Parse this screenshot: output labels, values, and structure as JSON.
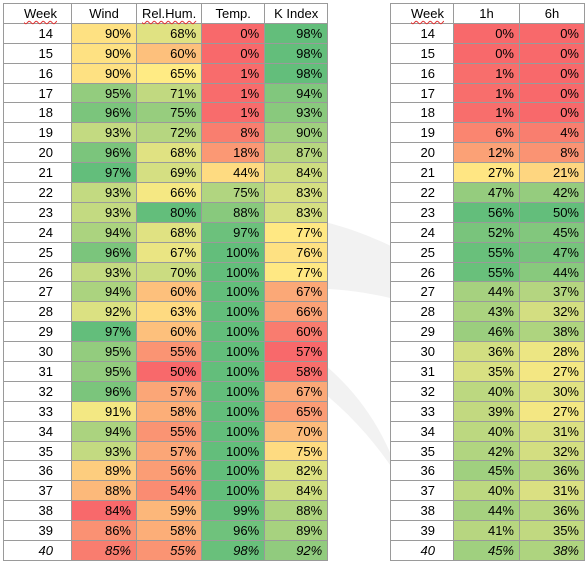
{
  "left_table": {
    "headers": [
      "Week",
      "Wind",
      "Rel.Hum.",
      "Temp.",
      "K Index"
    ],
    "rows": [
      [
        "14",
        "90%",
        "68%",
        "0%",
        "98%"
      ],
      [
        "15",
        "90%",
        "60%",
        "0%",
        "98%"
      ],
      [
        "16",
        "90%",
        "65%",
        "1%",
        "98%"
      ],
      [
        "17",
        "95%",
        "71%",
        "1%",
        "94%"
      ],
      [
        "18",
        "96%",
        "75%",
        "1%",
        "93%"
      ],
      [
        "19",
        "93%",
        "72%",
        "8%",
        "90%"
      ],
      [
        "20",
        "96%",
        "68%",
        "18%",
        "87%"
      ],
      [
        "21",
        "97%",
        "69%",
        "44%",
        "84%"
      ],
      [
        "22",
        "93%",
        "66%",
        "75%",
        "83%"
      ],
      [
        "23",
        "93%",
        "80%",
        "88%",
        "83%"
      ],
      [
        "24",
        "94%",
        "68%",
        "97%",
        "77%"
      ],
      [
        "25",
        "96%",
        "67%",
        "100%",
        "76%"
      ],
      [
        "26",
        "93%",
        "70%",
        "100%",
        "77%"
      ],
      [
        "27",
        "94%",
        "60%",
        "100%",
        "67%"
      ],
      [
        "28",
        "92%",
        "63%",
        "100%",
        "66%"
      ],
      [
        "29",
        "97%",
        "60%",
        "100%",
        "60%"
      ],
      [
        "30",
        "95%",
        "55%",
        "100%",
        "57%"
      ],
      [
        "31",
        "95%",
        "50%",
        "100%",
        "58%"
      ],
      [
        "32",
        "96%",
        "57%",
        "100%",
        "67%"
      ],
      [
        "33",
        "91%",
        "58%",
        "100%",
        "65%"
      ],
      [
        "34",
        "94%",
        "55%",
        "100%",
        "70%"
      ],
      [
        "35",
        "93%",
        "57%",
        "100%",
        "75%"
      ],
      [
        "36",
        "89%",
        "56%",
        "100%",
        "82%"
      ],
      [
        "37",
        "88%",
        "54%",
        "100%",
        "84%"
      ],
      [
        "38",
        "84%",
        "59%",
        "99%",
        "88%"
      ],
      [
        "39",
        "86%",
        "58%",
        "96%",
        "89%"
      ],
      [
        "40",
        "85%",
        "55%",
        "98%",
        "92%"
      ]
    ]
  },
  "right_table": {
    "headers": [
      "Week",
      "1h",
      "6h"
    ],
    "rows": [
      [
        "14",
        "0%",
        "0%"
      ],
      [
        "15",
        "0%",
        "0%"
      ],
      [
        "16",
        "1%",
        "0%"
      ],
      [
        "17",
        "1%",
        "0%"
      ],
      [
        "18",
        "1%",
        "0%"
      ],
      [
        "19",
        "6%",
        "4%"
      ],
      [
        "20",
        "12%",
        "8%"
      ],
      [
        "21",
        "27%",
        "21%"
      ],
      [
        "22",
        "47%",
        "42%"
      ],
      [
        "23",
        "56%",
        "50%"
      ],
      [
        "24",
        "52%",
        "45%"
      ],
      [
        "25",
        "55%",
        "47%"
      ],
      [
        "26",
        "55%",
        "44%"
      ],
      [
        "27",
        "44%",
        "37%"
      ],
      [
        "28",
        "43%",
        "32%"
      ],
      [
        "29",
        "46%",
        "38%"
      ],
      [
        "30",
        "36%",
        "28%"
      ],
      [
        "31",
        "35%",
        "27%"
      ],
      [
        "32",
        "40%",
        "30%"
      ],
      [
        "33",
        "39%",
        "27%"
      ],
      [
        "34",
        "40%",
        "31%"
      ],
      [
        "35",
        "42%",
        "32%"
      ],
      [
        "36",
        "45%",
        "36%"
      ],
      [
        "37",
        "40%",
        "31%"
      ],
      [
        "38",
        "44%",
        "36%"
      ],
      [
        "39",
        "41%",
        "35%"
      ],
      [
        "40",
        "45%",
        "38%"
      ]
    ]
  },
  "colors": {
    "scale_low": "#f8696b",
    "scale_mid": "#ffeb84",
    "scale_high": "#63be7b",
    "border": "#9a9a9a"
  }
}
